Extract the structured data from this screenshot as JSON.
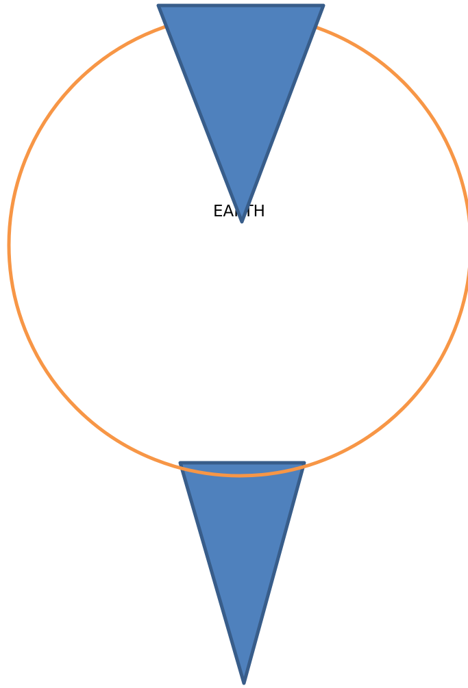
{
  "diagram": {
    "label": "EARTH",
    "colors": {
      "circle_stroke": "#f79646",
      "triangle_fill": "#4f81bd",
      "triangle_stroke": "#385d8a",
      "label_text": "#000000",
      "background": "#ffffff"
    }
  }
}
